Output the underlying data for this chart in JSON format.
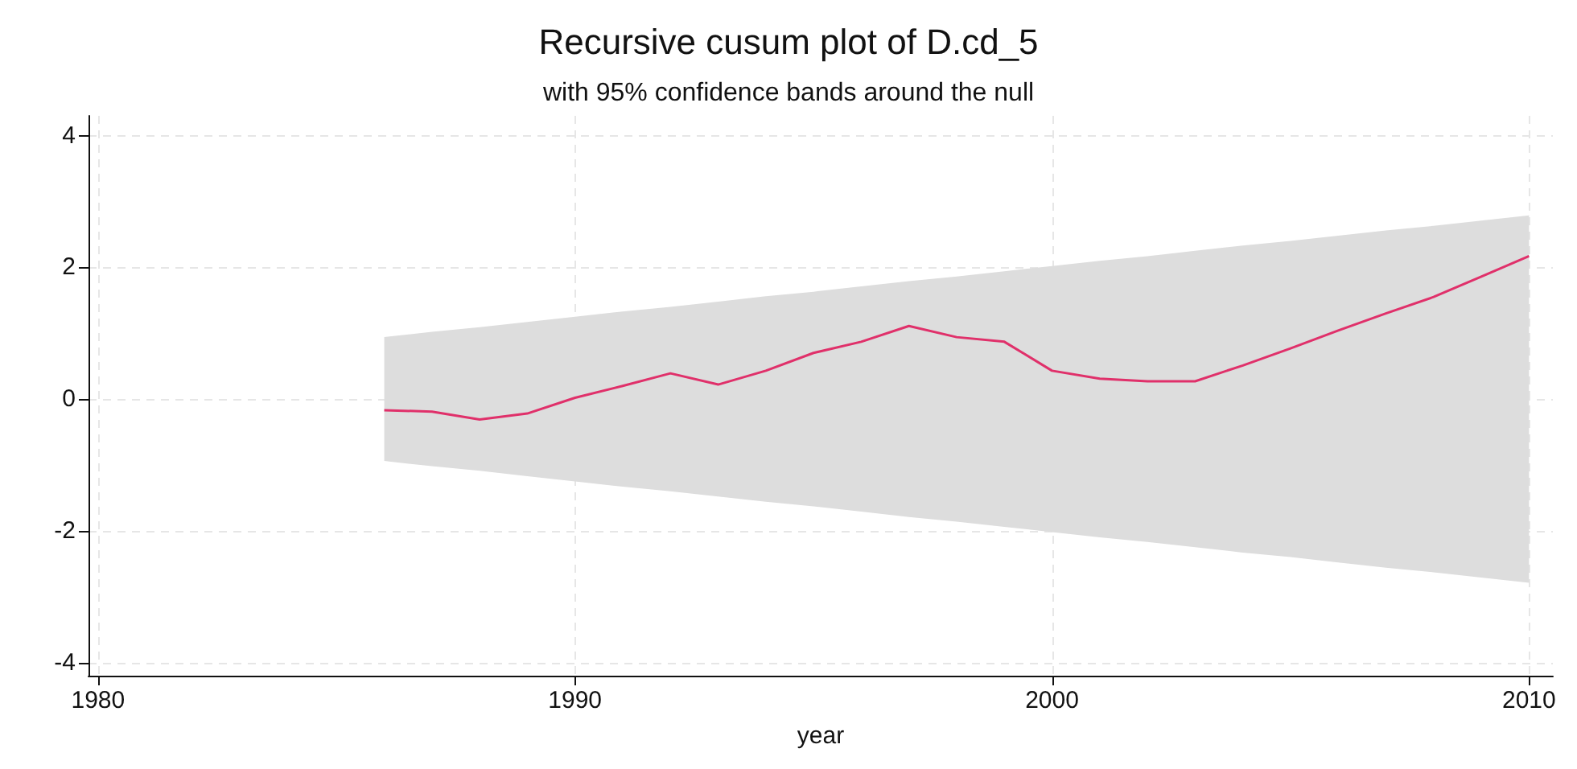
{
  "chart_data": {
    "type": "line",
    "title": "Recursive cusum plot of D.cd_5",
    "subtitle": "with 95% confidence bands around the null",
    "xlabel": "year",
    "x": [
      1986,
      1987,
      1988,
      1989,
      1990,
      1991,
      1992,
      1993,
      1994,
      1995,
      1996,
      1997,
      1998,
      1999,
      2000,
      2001,
      2002,
      2003,
      2004,
      2005,
      2006,
      2007,
      2008,
      2009,
      2010
    ],
    "series": [
      {
        "color": "#e0306a",
        "values": [
          -0.17,
          -0.19,
          -0.31,
          -0.22,
          0.02,
          0.2,
          0.39,
          0.22,
          0.43,
          0.7,
          0.87,
          1.11,
          0.94,
          0.87,
          0.43,
          0.31,
          0.27,
          0.27,
          0.51,
          0.77,
          1.04,
          1.3,
          1.55,
          1.86,
          2.17
        ],
        "upper": [
          0.94,
          1.02,
          1.09,
          1.17,
          1.25,
          1.33,
          1.4,
          1.48,
          1.56,
          1.63,
          1.71,
          1.79,
          1.86,
          1.94,
          2.02,
          2.1,
          2.17,
          2.25,
          2.33,
          2.4,
          2.48,
          2.56,
          2.63,
          2.71,
          2.79
        ],
        "lower": [
          -0.94,
          -1.02,
          -1.09,
          -1.17,
          -1.25,
          -1.33,
          -1.4,
          -1.48,
          -1.56,
          -1.63,
          -1.71,
          -1.79,
          -1.86,
          -1.94,
          -2.02,
          -2.1,
          -2.17,
          -2.25,
          -2.33,
          -2.4,
          -2.48,
          -2.56,
          -2.63,
          -2.71,
          -2.79
        ]
      }
    ],
    "xlim": [
      1979.8,
      2010.5
    ],
    "xticks": [
      1980,
      1990,
      2000,
      2010
    ],
    "ylim": [
      -4.2,
      4.3
    ],
    "yticks": [
      -4,
      -2,
      0,
      2,
      4
    ],
    "grid": true,
    "marker": "none",
    "line_style": "solid"
  }
}
